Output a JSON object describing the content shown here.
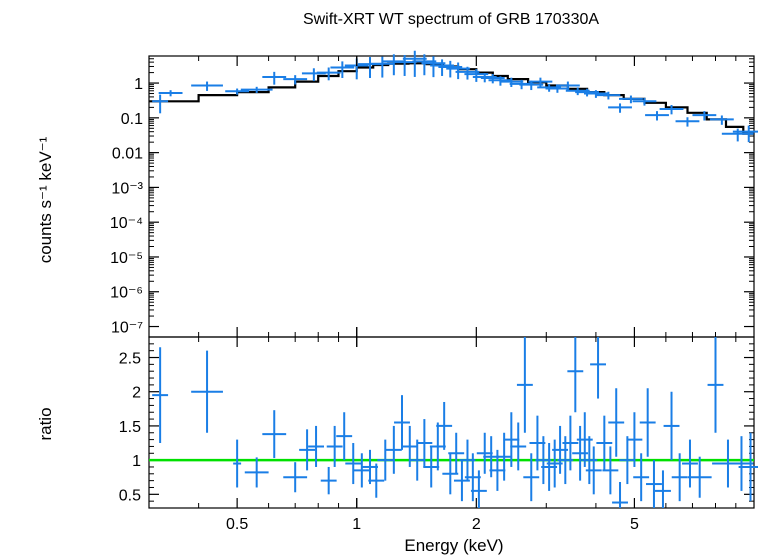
{
  "chart_data": [
    {
      "type": "scatter",
      "title": "Swift-XRT WT spectrum of GRB 170330A",
      "xlabel": "",
      "ylabel": "counts s⁻¹ keV⁻¹",
      "xscale": "log",
      "yscale": "log",
      "xlim": [
        0.3,
        10
      ],
      "ylim": [
        5e-08,
        6
      ],
      "y_ticks": [
        "1",
        "0.1",
        "0.01",
        "10⁻³",
        "10⁻⁴",
        "10⁻⁵",
        "10⁻⁶",
        "10⁻⁷"
      ],
      "colors": {
        "data": "#1a7ee6",
        "model": "#000000"
      },
      "series": [
        {
          "points": [
            [
              0.32,
              0.3,
              0.02,
              0.55
            ],
            [
              0.34,
              0.52,
              0.03,
              0.2
            ],
            [
              0.42,
              0.85,
              0.04,
              0.3
            ],
            [
              0.5,
              0.58,
              0.03,
              0.2
            ],
            [
              0.56,
              0.65,
              0.04,
              0.2
            ],
            [
              0.62,
              1.5,
              0.03,
              0.4
            ],
            [
              0.7,
              1.3,
              0.03,
              0.3
            ],
            [
              0.78,
              1.9,
              0.03,
              0.4
            ],
            [
              0.85,
              2.0,
              0.03,
              0.4
            ],
            [
              0.92,
              2.8,
              0.03,
              0.5
            ],
            [
              1.0,
              3.2,
              0.03,
              0.6
            ],
            [
              1.08,
              3.5,
              0.03,
              0.6
            ],
            [
              1.16,
              3.6,
              0.03,
              0.6
            ],
            [
              1.24,
              4.2,
              0.03,
              0.6
            ],
            [
              1.32,
              4.0,
              0.03,
              0.6
            ],
            [
              1.4,
              5.0,
              0.03,
              0.7
            ],
            [
              1.48,
              4.2,
              0.03,
              0.6
            ],
            [
              1.56,
              3.7,
              0.03,
              0.6
            ],
            [
              1.64,
              3.2,
              0.03,
              0.5
            ],
            [
              1.72,
              2.9,
              0.03,
              0.5
            ],
            [
              1.8,
              2.6,
              0.03,
              0.5
            ],
            [
              1.9,
              2.1,
              0.03,
              0.4
            ],
            [
              2.0,
              1.8,
              0.03,
              0.4
            ],
            [
              2.1,
              1.5,
              0.03,
              0.3
            ],
            [
              2.2,
              1.4,
              0.03,
              0.3
            ],
            [
              2.3,
              1.2,
              0.03,
              0.3
            ],
            [
              2.45,
              1.1,
              0.03,
              0.3
            ],
            [
              2.6,
              0.95,
              0.03,
              0.3
            ],
            [
              2.75,
              0.9,
              0.03,
              0.3
            ],
            [
              2.9,
              1.1,
              0.03,
              0.3
            ],
            [
              3.05,
              0.75,
              0.03,
              0.25
            ],
            [
              3.2,
              0.7,
              0.03,
              0.25
            ],
            [
              3.4,
              0.85,
              0.03,
              0.3
            ],
            [
              3.6,
              0.6,
              0.03,
              0.25
            ],
            [
              3.8,
              0.55,
              0.03,
              0.25
            ],
            [
              4.0,
              0.5,
              0.03,
              0.25
            ],
            [
              4.3,
              0.45,
              0.03,
              0.25
            ],
            [
              4.6,
              0.2,
              0.03,
              0.3
            ],
            [
              4.9,
              0.35,
              0.03,
              0.25
            ],
            [
              5.3,
              0.3,
              0.03,
              0.25
            ],
            [
              5.7,
              0.12,
              0.03,
              0.3
            ],
            [
              6.2,
              0.18,
              0.03,
              0.3
            ],
            [
              6.8,
              0.08,
              0.03,
              0.3
            ],
            [
              7.5,
              0.12,
              0.03,
              0.3
            ],
            [
              8.3,
              0.09,
              0.03,
              0.3
            ],
            [
              9.1,
              0.035,
              0.04,
              0.4
            ],
            [
              9.7,
              0.04,
              0.04,
              0.5
            ]
          ]
        },
        {
          "steps": [
            [
              0.3,
              0.3
            ],
            [
              0.4,
              0.45
            ],
            [
              0.5,
              0.55
            ],
            [
              0.6,
              0.75
            ],
            [
              0.7,
              1.1
            ],
            [
              0.8,
              1.6
            ],
            [
              0.9,
              2.2
            ],
            [
              1.0,
              2.8
            ],
            [
              1.1,
              3.3
            ],
            [
              1.2,
              3.6
            ],
            [
              1.35,
              3.7
            ],
            [
              1.5,
              3.5
            ],
            [
              1.65,
              3.0
            ],
            [
              1.8,
              2.5
            ],
            [
              2.0,
              2.0
            ],
            [
              2.2,
              1.6
            ],
            [
              2.4,
              1.3
            ],
            [
              2.7,
              1.05
            ],
            [
              3.0,
              0.85
            ],
            [
              3.4,
              0.68
            ],
            [
              3.8,
              0.55
            ],
            [
              4.2,
              0.45
            ],
            [
              4.7,
              0.35
            ],
            [
              5.3,
              0.27
            ],
            [
              6.0,
              0.2
            ],
            [
              6.8,
              0.14
            ],
            [
              7.6,
              0.09
            ],
            [
              8.5,
              0.055
            ],
            [
              9.4,
              0.035
            ],
            [
              10.0,
              0.035
            ]
          ]
        }
      ]
    },
    {
      "type": "scatter",
      "title": "",
      "xlabel": "Energy (keV)",
      "ylabel": "ratio",
      "xscale": "log",
      "xlim": [
        0.3,
        10
      ],
      "ylim": [
        0.3,
        2.8
      ],
      "x_ticks": [
        "0.5",
        "1",
        "2",
        "5"
      ],
      "y_ticks": [
        "0.5",
        "1",
        "1.5",
        "2",
        "2.5"
      ],
      "reference_line": 1,
      "colors": {
        "data": "#1a7ee6",
        "reference": "#00e000"
      },
      "series": [
        {
          "points": [
            [
              0.32,
              1.95,
              0.02,
              0.7
            ],
            [
              0.42,
              2.0,
              0.04,
              0.6
            ],
            [
              0.5,
              0.95,
              0.01,
              0.35
            ],
            [
              0.56,
              0.82,
              0.03,
              0.22
            ],
            [
              0.62,
              1.38,
              0.03,
              0.35
            ],
            [
              0.7,
              0.75,
              0.03,
              0.22
            ],
            [
              0.75,
              1.15,
              0.02,
              0.3
            ],
            [
              0.79,
              1.2,
              0.02,
              0.3
            ],
            [
              0.85,
              0.7,
              0.02,
              0.2
            ],
            [
              0.88,
              1.2,
              0.02,
              0.3
            ],
            [
              0.93,
              1.35,
              0.02,
              0.35
            ],
            [
              0.98,
              0.95,
              0.02,
              0.3
            ],
            [
              1.03,
              0.85,
              0.02,
              0.25
            ],
            [
              1.08,
              0.9,
              0.02,
              0.25
            ],
            [
              1.12,
              0.7,
              0.02,
              0.25
            ],
            [
              1.18,
              1.0,
              0.02,
              0.3
            ],
            [
              1.24,
              1.15,
              0.02,
              0.35
            ],
            [
              1.3,
              1.55,
              0.02,
              0.4
            ],
            [
              1.36,
              1.2,
              0.02,
              0.3
            ],
            [
              1.42,
              1.0,
              0.02,
              0.3
            ],
            [
              1.48,
              1.25,
              0.02,
              0.35
            ],
            [
              1.54,
              0.9,
              0.02,
              0.3
            ],
            [
              1.6,
              1.2,
              0.02,
              0.35
            ],
            [
              1.66,
              1.5,
              0.02,
              0.35
            ],
            [
              1.72,
              0.8,
              0.02,
              0.3
            ],
            [
              1.78,
              1.1,
              0.02,
              0.3
            ],
            [
              1.84,
              0.7,
              0.02,
              0.3
            ],
            [
              1.9,
              1.0,
              0.02,
              0.3
            ],
            [
              1.96,
              0.75,
              0.02,
              0.35
            ],
            [
              2.03,
              0.55,
              0.02,
              0.3
            ],
            [
              2.1,
              1.1,
              0.02,
              0.3
            ],
            [
              2.18,
              1.05,
              0.02,
              0.3
            ],
            [
              2.26,
              0.85,
              0.02,
              0.3
            ],
            [
              2.35,
              1.05,
              0.02,
              0.35
            ],
            [
              2.45,
              1.3,
              0.02,
              0.4
            ],
            [
              2.55,
              1.2,
              0.02,
              0.35
            ],
            [
              2.65,
              2.1,
              0.02,
              0.7
            ],
            [
              2.75,
              0.75,
              0.02,
              0.35
            ],
            [
              2.85,
              1.25,
              0.02,
              0.4
            ],
            [
              2.95,
              1.0,
              0.02,
              0.35
            ],
            [
              3.05,
              0.9,
              0.02,
              0.35
            ],
            [
              3.15,
              0.95,
              0.02,
              0.35
            ],
            [
              3.25,
              1.15,
              0.02,
              0.35
            ],
            [
              3.35,
              1.0,
              0.02,
              0.35
            ],
            [
              3.45,
              1.25,
              0.02,
              0.4
            ],
            [
              3.55,
              2.3,
              0.02,
              0.6
            ],
            [
              3.65,
              1.1,
              0.02,
              0.4
            ],
            [
              3.75,
              1.3,
              0.02,
              0.4
            ],
            [
              3.85,
              1.0,
              0.02,
              0.35
            ],
            [
              3.95,
              0.85,
              0.02,
              0.35
            ],
            [
              4.05,
              2.4,
              0.02,
              0.5
            ],
            [
              4.2,
              1.25,
              0.02,
              0.4
            ],
            [
              4.35,
              0.85,
              0.02,
              0.35
            ],
            [
              4.5,
              1.55,
              0.02,
              0.5
            ],
            [
              4.6,
              0.38,
              0.02,
              0.3
            ],
            [
              4.8,
              1.0,
              0.02,
              0.35
            ],
            [
              5.0,
              1.3,
              0.02,
              0.4
            ],
            [
              5.2,
              0.75,
              0.02,
              0.35
            ],
            [
              5.4,
              1.55,
              0.02,
              0.5
            ],
            [
              5.6,
              0.65,
              0.02,
              0.35
            ],
            [
              5.9,
              0.55,
              0.02,
              0.3
            ],
            [
              6.2,
              1.5,
              0.02,
              0.5
            ],
            [
              6.5,
              0.75,
              0.02,
              0.35
            ],
            [
              6.9,
              0.95,
              0.02,
              0.35
            ],
            [
              7.3,
              0.75,
              0.03,
              0.3
            ],
            [
              8.0,
              2.1,
              0.02,
              0.7
            ],
            [
              8.6,
              0.95,
              0.04,
              0.35
            ],
            [
              9.3,
              0.95,
              0.03,
              0.4
            ],
            [
              9.8,
              0.9,
              0.03,
              0.5
            ]
          ]
        }
      ]
    }
  ]
}
